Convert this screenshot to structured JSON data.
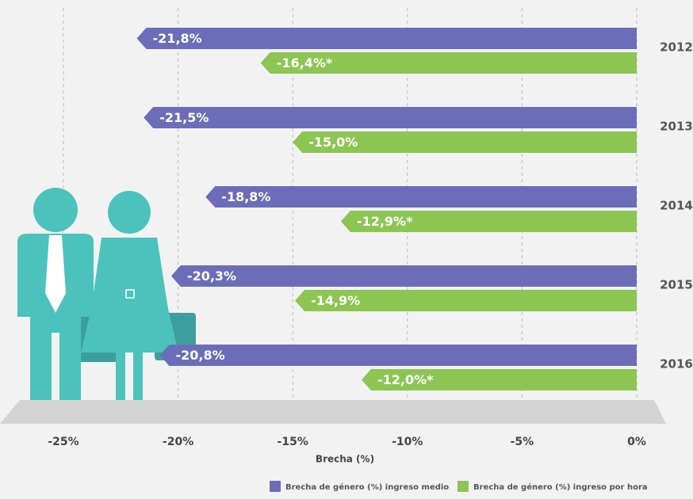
{
  "chart_data": {
    "type": "hbar",
    "categories": [
      "2012",
      "2013",
      "2014",
      "2015",
      "2016"
    ],
    "series": [
      {
        "name": "Brecha de género (%) ingreso medio",
        "color": "#6c6db8",
        "values": [
          -21.8,
          -21.5,
          -18.8,
          -20.3,
          -20.8
        ],
        "value_labels": [
          "-21,8%",
          "-21,5%",
          "-18,8%",
          "-20,3%",
          "-20,8%"
        ]
      },
      {
        "name": "Brecha de género (%) ingreso por hora",
        "color": "#8dc553",
        "values": [
          -16.4,
          -15.0,
          -12.9,
          -14.9,
          -12.0
        ],
        "value_labels": [
          "-16,4%*",
          "-15,0%",
          "-12,9%*",
          "-14,9%",
          "-12,0%*"
        ]
      }
    ],
    "xlim": [
      -25,
      0
    ],
    "xticks": [
      {
        "value": -25,
        "label": "-25%"
      },
      {
        "value": -20,
        "label": "-20%"
      },
      {
        "value": -15,
        "label": "-15%"
      },
      {
        "value": -10,
        "label": "-10%"
      },
      {
        "value": -5,
        "label": "-5%"
      },
      {
        "value": 0,
        "label": "0%"
      }
    ],
    "xlabel": "Brecha (%)",
    "grid": true
  }
}
